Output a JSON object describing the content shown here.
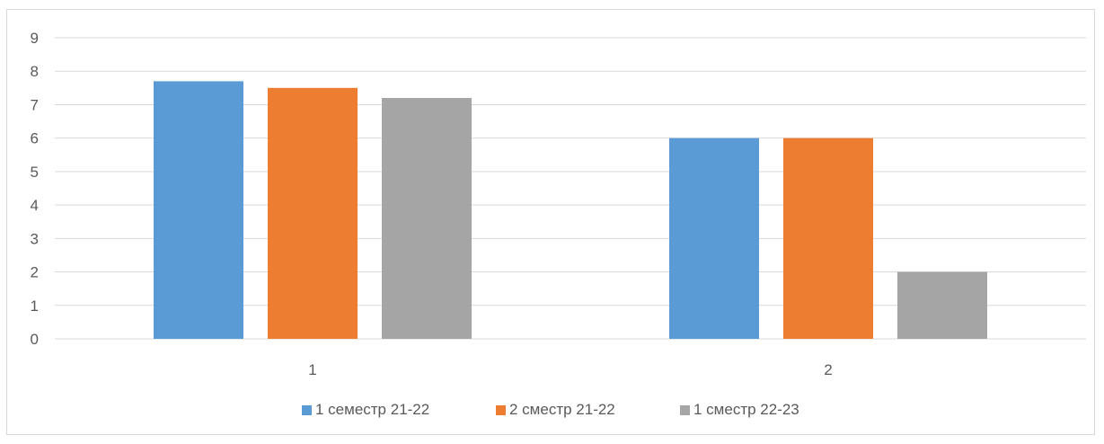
{
  "chart_data": {
    "type": "bar",
    "categories": [
      "1",
      "2"
    ],
    "series": [
      {
        "name": "1 семестр 21-22",
        "values": [
          7.7,
          6
        ],
        "color": "#5b9bd5"
      },
      {
        "name": "2 сместр 21-22",
        "values": [
          7.5,
          6
        ],
        "color": "#ed7d31"
      },
      {
        "name": "1 сместр 22-23",
        "values": [
          7.2,
          2
        ],
        "color": "#a5a5a5"
      }
    ],
    "ylim": [
      0,
      9
    ],
    "y_ticks": [
      "0",
      "1",
      "2",
      "3",
      "4",
      "5",
      "6",
      "7",
      "8",
      "9"
    ],
    "grid": true,
    "legend_position": "bottom",
    "gridline_color": "#d9d9d9"
  }
}
